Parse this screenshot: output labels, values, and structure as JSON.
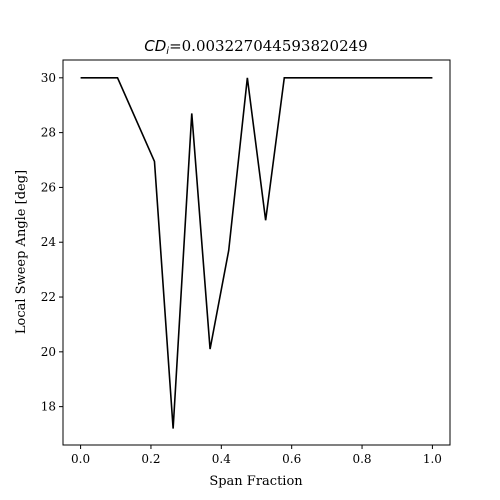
{
  "chart_data": {
    "type": "line",
    "title": {
      "symbol": "CD",
      "subscript": "i",
      "value": "=0.003227044593820249"
    },
    "xlabel": "Span Fraction",
    "ylabel": "Local Sweep Angle [deg]",
    "xlim": [
      -0.05,
      1.05
    ],
    "ylim": [
      16.6,
      30.65
    ],
    "x_ticks": [
      0.0,
      0.2,
      0.4,
      0.6,
      0.8,
      1.0
    ],
    "x_tick_labels": [
      "0.0",
      "0.2",
      "0.4",
      "0.6",
      "0.8",
      "1.0"
    ],
    "y_ticks": [
      18,
      20,
      22,
      24,
      26,
      28,
      30
    ],
    "y_tick_labels": [
      "18",
      "20",
      "22",
      "24",
      "26",
      "28",
      "30"
    ],
    "grid": false,
    "line_color": "#000000",
    "series": [
      {
        "x": [
          0.0,
          0.105,
          0.21,
          0.263,
          0.316,
          0.368,
          0.421,
          0.474,
          0.526,
          0.579,
          0.632,
          1.0
        ],
        "values": [
          30.0,
          30.0,
          26.95,
          17.2,
          28.7,
          20.1,
          23.7,
          30.0,
          24.8,
          30.0,
          30.0,
          30.0
        ]
      }
    ]
  }
}
